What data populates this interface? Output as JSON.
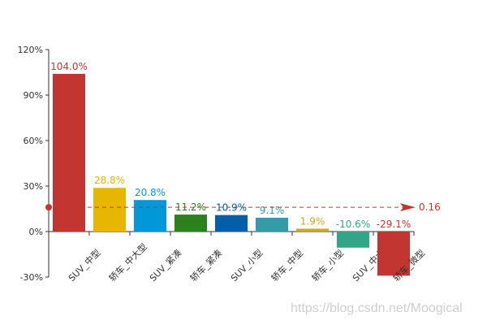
{
  "chart_data": {
    "type": "bar",
    "categories": [
      "SUV_中型",
      "轿车_中大型",
      "SUV_紧凑",
      "轿车_紧凑",
      "SUV_小型",
      "轿车_中型",
      "轿车_小型",
      "SUV_中大型",
      "轿车_微型"
    ],
    "values": [
      104.0,
      28.8,
      20.8,
      11.2,
      10.9,
      9.1,
      1.9,
      -10.6,
      -29.1
    ],
    "data_labels": [
      "104.0%",
      "28.8%",
      "20.8%",
      "11.2%",
      "10.9%",
      "9.1%",
      "1.9%",
      "-10.6%",
      "-29.1%"
    ],
    "colors": [
      "#c23531",
      "#e6b600",
      "#0098d9",
      "#2b821d",
      "#005eaa",
      "#339ca8",
      "#cda819",
      "#32a487",
      "#c23531"
    ],
    "ylim": [
      -30,
      120
    ],
    "yticks": [
      "-30%",
      "0%",
      "30%",
      "60%",
      "90%",
      "120%"
    ],
    "ytick_values": [
      -30,
      0,
      30,
      60,
      90,
      120
    ],
    "grid": false,
    "mark_line": {
      "value": 0.16,
      "label": "0.16",
      "color": "#c23531"
    }
  },
  "watermark": "https://blog.csdn.net/Moogical"
}
